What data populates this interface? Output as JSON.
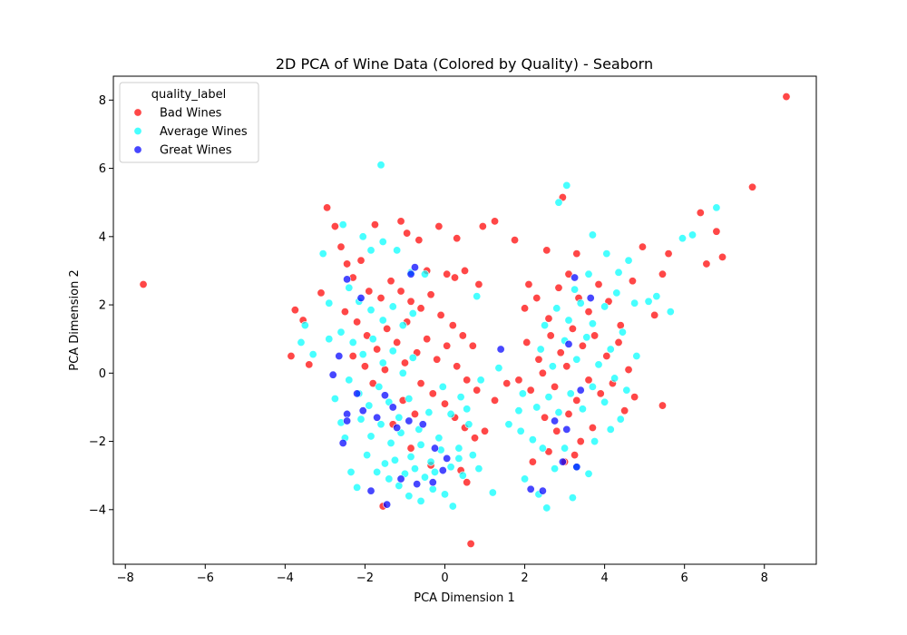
{
  "chart_data": {
    "type": "scatter",
    "title": "2D PCA of Wine Data (Colored by Quality) - Seaborn",
    "xlabel": "PCA Dimension 1",
    "ylabel": "PCA Dimension 2",
    "xlim": [
      -8.3,
      9.3
    ],
    "ylim": [
      -5.6,
      8.7
    ],
    "xticks": [
      -8,
      -6,
      -4,
      -2,
      0,
      2,
      4,
      6,
      8
    ],
    "xtick_labels": [
      "−8",
      "−6",
      "−4",
      "−2",
      "0",
      "2",
      "4",
      "6",
      "8"
    ],
    "yticks": [
      -4,
      -2,
      0,
      2,
      4,
      6,
      8
    ],
    "ytick_labels": [
      "−4",
      "−2",
      "0",
      "2",
      "4",
      "6",
      "8"
    ],
    "grid": false,
    "legend": {
      "title": "quality_label",
      "placement": "top-left"
    },
    "series": [
      {
        "name": "Bad Wines",
        "color": "#ff0000",
        "points": [
          [
            -7.55,
            2.6
          ],
          [
            8.55,
            8.1
          ],
          [
            7.7,
            5.45
          ],
          [
            6.95,
            3.4
          ],
          [
            6.8,
            4.15
          ],
          [
            6.55,
            3.2
          ],
          [
            6.4,
            4.7
          ],
          [
            5.45,
            2.9
          ],
          [
            5.45,
            -0.95
          ],
          [
            0.65,
            -5.0
          ],
          [
            -3.85,
            0.5
          ],
          [
            -3.75,
            1.85
          ],
          [
            -3.55,
            1.55
          ],
          [
            -3.4,
            0.25
          ],
          [
            -3.1,
            2.35
          ],
          [
            -2.95,
            4.85
          ],
          [
            -2.75,
            4.3
          ],
          [
            -2.6,
            3.7
          ],
          [
            -2.45,
            3.2
          ],
          [
            -1.75,
            4.35
          ],
          [
            -1.1,
            4.45
          ],
          [
            -0.65,
            3.9
          ],
          [
            -0.95,
            4.1
          ],
          [
            -0.15,
            4.3
          ],
          [
            0.3,
            3.95
          ],
          [
            0.95,
            4.3
          ],
          [
            1.25,
            4.45
          ],
          [
            1.75,
            3.9
          ],
          [
            2.1,
            2.6
          ],
          [
            2.55,
            3.6
          ],
          [
            2.95,
            5.15
          ],
          [
            3.3,
            3.5
          ],
          [
            0.25,
            2.8
          ],
          [
            0.5,
            3.0
          ],
          [
            0.85,
            2.6
          ],
          [
            0.05,
            2.9
          ],
          [
            -0.45,
            3.0
          ],
          [
            -2.1,
            3.3
          ],
          [
            -2.3,
            2.8
          ],
          [
            -1.9,
            2.4
          ],
          [
            -1.6,
            2.2
          ],
          [
            -1.35,
            2.7
          ],
          [
            -1.1,
            2.4
          ],
          [
            -0.85,
            2.1
          ],
          [
            -0.6,
            1.9
          ],
          [
            -0.35,
            2.3
          ],
          [
            -0.1,
            1.7
          ],
          [
            0.2,
            1.4
          ],
          [
            0.45,
            1.1
          ],
          [
            0.7,
            0.8
          ],
          [
            -2.5,
            1.8
          ],
          [
            -2.2,
            1.5
          ],
          [
            -1.95,
            1.1
          ],
          [
            -1.7,
            0.7
          ],
          [
            -1.45,
            1.3
          ],
          [
            -1.2,
            0.9
          ],
          [
            -0.95,
            1.5
          ],
          [
            -0.7,
            0.6
          ],
          [
            -0.45,
            1.0
          ],
          [
            -0.2,
            0.4
          ],
          [
            0.05,
            0.8
          ],
          [
            0.3,
            0.2
          ],
          [
            0.55,
            -0.2
          ],
          [
            0.8,
            -0.5
          ],
          [
            -0.6,
            -0.3
          ],
          [
            -0.3,
            -0.6
          ],
          [
            0.0,
            -0.9
          ],
          [
            0.25,
            -1.3
          ],
          [
            0.5,
            -1.6
          ],
          [
            0.75,
            -1.9
          ],
          [
            -1.05,
            -0.8
          ],
          [
            -1.3,
            -1.5
          ],
          [
            -0.85,
            -2.2
          ],
          [
            -0.35,
            -2.7
          ],
          [
            0.4,
            -2.85
          ],
          [
            0.55,
            -3.2
          ],
          [
            -1.55,
            -3.9
          ],
          [
            1.0,
            -1.7
          ],
          [
            1.25,
            -0.8
          ],
          [
            1.55,
            -0.3
          ],
          [
            2.0,
            1.9
          ],
          [
            2.3,
            2.2
          ],
          [
            2.6,
            1.6
          ],
          [
            2.85,
            2.5
          ],
          [
            3.1,
            2.9
          ],
          [
            3.35,
            2.2
          ],
          [
            3.6,
            1.8
          ],
          [
            3.85,
            2.6
          ],
          [
            4.1,
            2.1
          ],
          [
            4.4,
            1.4
          ],
          [
            4.7,
            2.7
          ],
          [
            4.95,
            3.7
          ],
          [
            5.25,
            1.7
          ],
          [
            5.6,
            3.5
          ],
          [
            2.05,
            0.9
          ],
          [
            2.35,
            0.4
          ],
          [
            2.65,
            1.1
          ],
          [
            2.9,
            0.6
          ],
          [
            3.2,
            1.3
          ],
          [
            3.45,
            0.8
          ],
          [
            3.75,
            1.1
          ],
          [
            4.05,
            0.5
          ],
          [
            4.35,
            0.9
          ],
          [
            4.6,
            0.1
          ],
          [
            1.85,
            -0.2
          ],
          [
            2.15,
            -0.5
          ],
          [
            2.45,
            0.0
          ],
          [
            2.75,
            -0.4
          ],
          [
            3.05,
            0.2
          ],
          [
            3.3,
            -0.8
          ],
          [
            3.6,
            -0.2
          ],
          [
            3.9,
            -0.6
          ],
          [
            4.2,
            -0.3
          ],
          [
            4.5,
            -1.1
          ],
          [
            4.75,
            -0.7
          ],
          [
            2.5,
            -1.3
          ],
          [
            2.8,
            -1.7
          ],
          [
            3.1,
            -1.2
          ],
          [
            3.4,
            -2.0
          ],
          [
            3.7,
            -1.6
          ],
          [
            2.2,
            -2.6
          ],
          [
            2.6,
            -2.3
          ],
          [
            3.0,
            -2.6
          ],
          [
            3.25,
            -2.4
          ],
          [
            -2.0,
            0.2
          ],
          [
            -1.8,
            -0.3
          ],
          [
            -2.3,
            0.5
          ],
          [
            -1.5,
            0.1
          ],
          [
            -1.0,
            0.3
          ],
          [
            -0.75,
            -1.2
          ]
        ]
      },
      {
        "name": "Average Wines",
        "color": "#00ffff",
        "points": [
          [
            -1.6,
            6.1
          ],
          [
            3.05,
            5.5
          ],
          [
            6.8,
            4.85
          ],
          [
            6.2,
            4.05
          ],
          [
            5.95,
            3.95
          ],
          [
            5.1,
            2.1
          ],
          [
            5.3,
            2.25
          ],
          [
            5.65,
            1.8
          ],
          [
            4.75,
            2.05
          ],
          [
            4.05,
            3.5
          ],
          [
            3.7,
            4.05
          ],
          [
            2.85,
            5.0
          ],
          [
            -3.05,
            3.5
          ],
          [
            -2.55,
            4.35
          ],
          [
            -3.5,
            1.4
          ],
          [
            -3.3,
            0.55
          ],
          [
            -2.9,
            1.0
          ],
          [
            -2.75,
            -0.75
          ],
          [
            -2.6,
            -1.45
          ],
          [
            -2.2,
            -3.35
          ],
          [
            -2.35,
            -2.9
          ],
          [
            -2.5,
            -1.9
          ],
          [
            -1.95,
            -2.4
          ],
          [
            -1.7,
            -2.9
          ],
          [
            -1.4,
            -3.1
          ],
          [
            -1.15,
            -3.3
          ],
          [
            -0.9,
            -3.6
          ],
          [
            -0.6,
            -3.75
          ],
          [
            -0.3,
            -3.4
          ],
          [
            0.0,
            -3.55
          ],
          [
            0.2,
            -3.9
          ],
          [
            0.45,
            -3.0
          ],
          [
            0.7,
            -2.4
          ],
          [
            0.85,
            -2.8
          ],
          [
            1.2,
            -3.5
          ],
          [
            2.0,
            -3.1
          ],
          [
            2.35,
            -3.55
          ],
          [
            2.55,
            -3.95
          ],
          [
            3.2,
            -3.65
          ],
          [
            3.6,
            -2.95
          ],
          [
            -2.05,
            4.0
          ],
          [
            -1.85,
            3.6
          ],
          [
            -1.55,
            3.85
          ],
          [
            -1.2,
            3.6
          ],
          [
            -0.85,
            2.95
          ],
          [
            -2.4,
            2.5
          ],
          [
            -2.15,
            2.1
          ],
          [
            -1.85,
            1.85
          ],
          [
            -1.55,
            1.55
          ],
          [
            -1.3,
            1.95
          ],
          [
            -1.05,
            1.4
          ],
          [
            -0.8,
            1.75
          ],
          [
            -2.6,
            1.2
          ],
          [
            -2.3,
            0.9
          ],
          [
            -2.05,
            0.55
          ],
          [
            -1.8,
            1.0
          ],
          [
            -1.55,
            0.3
          ],
          [
            -1.3,
            0.65
          ],
          [
            -1.05,
            0.0
          ],
          [
            -0.8,
            0.45
          ],
          [
            -2.4,
            -0.2
          ],
          [
            -2.15,
            -0.6
          ],
          [
            -1.9,
            -0.95
          ],
          [
            -1.65,
            -0.4
          ],
          [
            -1.4,
            -0.85
          ],
          [
            -1.15,
            -1.3
          ],
          [
            -0.9,
            -0.75
          ],
          [
            -0.65,
            -1.65
          ],
          [
            -0.4,
            -1.15
          ],
          [
            -0.15,
            -1.9
          ],
          [
            -2.1,
            -1.35
          ],
          [
            -1.85,
            -1.85
          ],
          [
            -1.6,
            -1.5
          ],
          [
            -1.35,
            -2.05
          ],
          [
            -1.1,
            -1.75
          ],
          [
            -0.85,
            -2.45
          ],
          [
            -0.6,
            -2.1
          ],
          [
            -0.35,
            -2.6
          ],
          [
            -0.1,
            -2.25
          ],
          [
            0.15,
            -2.75
          ],
          [
            -1.5,
            -2.65
          ],
          [
            -1.25,
            -2.55
          ],
          [
            -1.0,
            -2.95
          ],
          [
            -0.75,
            -2.8
          ],
          [
            -0.5,
            -3.05
          ],
          [
            -0.25,
            -2.9
          ],
          [
            0.35,
            -2.2
          ],
          [
            0.6,
            -1.5
          ],
          [
            0.15,
            -1.2
          ],
          [
            0.4,
            -0.7
          ],
          [
            0.9,
            -0.2
          ],
          [
            1.35,
            0.15
          ],
          [
            1.6,
            -1.5
          ],
          [
            1.85,
            -1.1
          ],
          [
            1.95,
            -0.6
          ],
          [
            1.9,
            -1.7
          ],
          [
            2.2,
            -1.95
          ],
          [
            2.45,
            -2.2
          ],
          [
            2.75,
            -2.8
          ],
          [
            3.0,
            -2.2
          ],
          [
            3.3,
            -2.75
          ],
          [
            3.75,
            -2.0
          ],
          [
            4.15,
            -1.65
          ],
          [
            4.4,
            -1.35
          ],
          [
            2.3,
            -1.0
          ],
          [
            2.6,
            -0.7
          ],
          [
            2.85,
            -1.15
          ],
          [
            3.15,
            -0.6
          ],
          [
            3.45,
            -1.05
          ],
          [
            3.7,
            -0.4
          ],
          [
            4.0,
            -0.85
          ],
          [
            4.25,
            -0.15
          ],
          [
            4.55,
            -0.5
          ],
          [
            2.4,
            0.7
          ],
          [
            2.7,
            0.2
          ],
          [
            3.0,
            0.95
          ],
          [
            3.3,
            0.4
          ],
          [
            3.55,
            1.05
          ],
          [
            3.85,
            0.25
          ],
          [
            4.15,
            0.7
          ],
          [
            4.45,
            1.2
          ],
          [
            4.8,
            0.5
          ],
          [
            2.5,
            1.4
          ],
          [
            2.8,
            1.9
          ],
          [
            3.1,
            1.55
          ],
          [
            3.4,
            2.05
          ],
          [
            3.7,
            1.45
          ],
          [
            4.0,
            1.95
          ],
          [
            4.3,
            2.35
          ],
          [
            3.25,
            2.45
          ],
          [
            3.6,
            2.9
          ],
          [
            4.35,
            2.95
          ],
          [
            4.6,
            3.3
          ],
          [
            -3.6,
            0.9
          ],
          [
            -2.9,
            2.05
          ],
          [
            -0.5,
            2.9
          ],
          [
            0.8,
            2.25
          ],
          [
            0.35,
            -2.5
          ],
          [
            -0.05,
            -0.4
          ],
          [
            0.55,
            -1.05
          ]
        ]
      },
      {
        "name": "Great Wines",
        "color": "#0000ff",
        "points": [
          [
            -2.8,
            -0.05
          ],
          [
            -2.65,
            0.5
          ],
          [
            -2.45,
            -1.2
          ],
          [
            -2.55,
            -2.05
          ],
          [
            -2.45,
            -1.4
          ],
          [
            -2.2,
            -0.6
          ],
          [
            -2.05,
            -1.1
          ],
          [
            -1.7,
            -1.3
          ],
          [
            -1.5,
            -0.65
          ],
          [
            -1.3,
            -1.0
          ],
          [
            -1.2,
            -1.6
          ],
          [
            -0.9,
            -1.4
          ],
          [
            -0.55,
            -1.5
          ],
          [
            -0.25,
            -2.2
          ],
          [
            -0.05,
            -2.85
          ],
          [
            -1.1,
            -3.1
          ],
          [
            -1.85,
            -3.45
          ],
          [
            -1.45,
            -3.85
          ],
          [
            -0.7,
            -3.25
          ],
          [
            -0.3,
            -3.2
          ],
          [
            -2.45,
            2.75
          ],
          [
            -2.1,
            2.2
          ],
          [
            -0.75,
            3.1
          ],
          [
            -0.85,
            2.9
          ],
          [
            1.4,
            0.7
          ],
          [
            2.15,
            -3.4
          ],
          [
            2.45,
            -3.45
          ],
          [
            2.95,
            -2.6
          ],
          [
            3.3,
            -2.75
          ],
          [
            3.05,
            -1.65
          ],
          [
            2.75,
            -1.4
          ],
          [
            3.4,
            -0.5
          ],
          [
            3.1,
            0.85
          ],
          [
            3.25,
            2.8
          ],
          [
            3.65,
            2.2
          ],
          [
            0.05,
            -2.5
          ]
        ]
      }
    ]
  }
}
